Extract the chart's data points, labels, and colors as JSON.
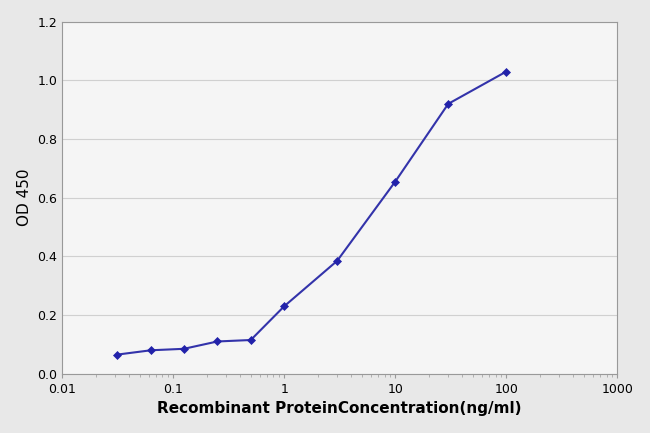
{
  "x": [
    0.031,
    0.063,
    0.125,
    0.25,
    0.5,
    1.0,
    3.0,
    10.0,
    30.0,
    100.0
  ],
  "y": [
    0.065,
    0.08,
    0.085,
    0.11,
    0.115,
    0.23,
    0.385,
    0.655,
    0.92,
    1.03
  ],
  "line_color": "#3333aa",
  "marker_color": "#2222aa",
  "marker": "D",
  "marker_size": 4,
  "line_width": 1.5,
  "xlabel": "Recombinant ProteinConcentration(ng/ml)",
  "ylabel": "OD 450",
  "xlim": [
    0.01,
    1000
  ],
  "ylim": [
    0,
    1.2
  ],
  "yticks": [
    0,
    0.2,
    0.4,
    0.6,
    0.8,
    1.0,
    1.2
  ],
  "xtick_vals": [
    0.01,
    0.1,
    1,
    10,
    100,
    1000
  ],
  "xtick_labels": [
    "0.01",
    "0.1",
    "1",
    "10",
    "100",
    "1000"
  ],
  "bg_color": "#e8e8e8",
  "plot_bg_color": "#f5f5f5",
  "xlabel_fontsize": 11,
  "ylabel_fontsize": 11,
  "tick_fontsize": 9,
  "grid_color": "#d0d0d0",
  "spine_color": "#999999"
}
